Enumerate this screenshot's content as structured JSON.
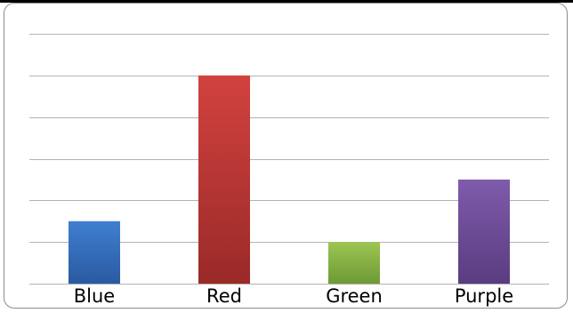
{
  "chart_data": {
    "type": "bar",
    "title": "",
    "xlabel": "",
    "ylabel": "",
    "categories": [
      "Blue",
      "Red",
      "Green",
      "Purple"
    ],
    "values": [
      1.5,
      5,
      1,
      2.5
    ],
    "colors": [
      "#3d74c2",
      "#c43f3c",
      "#8cb84a",
      "#7652a0"
    ],
    "ylim": [
      0,
      6
    ],
    "grid": true,
    "legend": "none"
  }
}
